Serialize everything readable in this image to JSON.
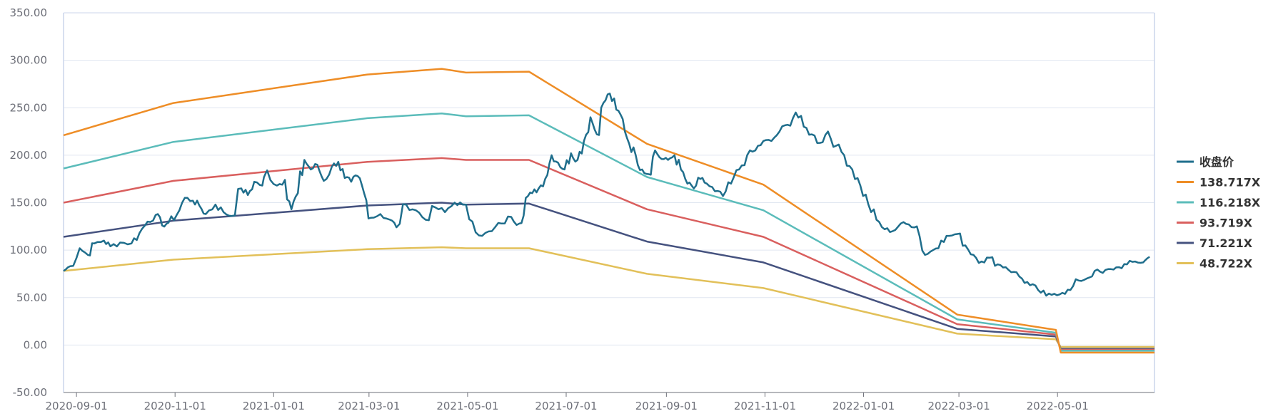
{
  "chart_data": {
    "type": "line",
    "x_type": "date",
    "y_ticks": [
      "350.00",
      "300.00",
      "250.00",
      "200.00",
      "150.00",
      "100.00",
      "50.00",
      "0.00",
      "-50.00"
    ],
    "ylim": [
      -50,
      350
    ],
    "x_ticks": [
      "2020-09-01",
      "2020-11-01",
      "2021-01-01",
      "2021-03-01",
      "2021-05-01",
      "2021-07-01",
      "2021-09-01",
      "2021-11-01",
      "2022-01-01",
      "2022-03-01",
      "2022-05-01"
    ],
    "xlim": [
      "2020-08-24",
      "2022-06-30"
    ],
    "grid": true,
    "legend_position": "right",
    "series": [
      {
        "name": "收盘价",
        "color": "#1f6e8c",
        "anchors": [
          [
            "2020-08-24",
            78
          ],
          [
            "2020-08-28",
            83
          ],
          [
            "2020-09-03",
            102
          ],
          [
            "2020-09-08",
            95
          ],
          [
            "2020-09-12",
            107
          ],
          [
            "2020-09-18",
            110
          ],
          [
            "2020-09-22",
            104
          ],
          [
            "2020-09-28",
            108
          ],
          [
            "2020-10-05",
            107
          ],
          [
            "2020-10-10",
            118
          ],
          [
            "2020-10-15",
            130
          ],
          [
            "2020-10-20",
            137
          ],
          [
            "2020-10-24",
            126
          ],
          [
            "2020-10-28",
            129
          ],
          [
            "2020-11-02",
            137
          ],
          [
            "2020-11-07",
            155
          ],
          [
            "2020-11-12",
            152
          ],
          [
            "2020-11-16",
            147
          ],
          [
            "2020-11-20",
            138
          ],
          [
            "2020-11-26",
            148
          ],
          [
            "2020-12-01",
            140
          ],
          [
            "2020-12-06",
            136
          ],
          [
            "2020-12-12",
            165
          ],
          [
            "2020-12-16",
            158
          ],
          [
            "2020-12-20",
            172
          ],
          [
            "2020-12-25",
            168
          ],
          [
            "2020-12-28",
            184
          ],
          [
            "2021-01-03",
            168
          ],
          [
            "2021-01-08",
            174
          ],
          [
            "2021-01-12",
            143
          ],
          [
            "2021-01-16",
            160
          ],
          [
            "2021-01-20",
            195
          ],
          [
            "2021-01-24",
            185
          ],
          [
            "2021-01-28",
            190
          ],
          [
            "2021-02-01",
            173
          ],
          [
            "2021-02-06",
            188
          ],
          [
            "2021-02-10",
            193
          ],
          [
            "2021-02-14",
            176
          ],
          [
            "2021-02-18",
            172
          ],
          [
            "2021-02-22",
            178
          ],
          [
            "2021-02-26",
            160
          ],
          [
            "2021-03-02",
            134
          ],
          [
            "2021-03-08",
            138
          ],
          [
            "2021-03-14",
            132
          ],
          [
            "2021-03-18",
            124
          ],
          [
            "2021-03-24",
            148
          ],
          [
            "2021-03-30",
            142
          ],
          [
            "2021-04-05",
            132
          ],
          [
            "2021-04-11",
            145
          ],
          [
            "2021-04-17",
            140
          ],
          [
            "2021-04-23",
            150
          ],
          [
            "2021-04-28",
            148
          ],
          [
            "2021-05-04",
            130
          ],
          [
            "2021-05-10",
            115
          ],
          [
            "2021-05-16",
            120
          ],
          [
            "2021-05-22",
            128
          ],
          [
            "2021-05-28",
            135
          ],
          [
            "2021-06-02",
            128
          ],
          [
            "2021-06-06",
            155
          ],
          [
            "2021-06-10",
            160
          ],
          [
            "2021-06-14",
            165
          ],
          [
            "2021-06-18",
            175
          ],
          [
            "2021-06-22",
            200
          ],
          [
            "2021-06-26",
            192
          ],
          [
            "2021-06-30",
            185
          ],
          [
            "2021-07-04",
            202
          ],
          [
            "2021-07-08",
            195
          ],
          [
            "2021-07-12",
            215
          ],
          [
            "2021-07-16",
            240
          ],
          [
            "2021-07-20",
            222
          ],
          [
            "2021-07-24",
            255
          ],
          [
            "2021-07-28",
            265
          ],
          [
            "2021-08-01",
            248
          ],
          [
            "2021-08-05",
            238
          ],
          [
            "2021-08-09",
            212
          ],
          [
            "2021-08-13",
            200
          ],
          [
            "2021-08-17",
            185
          ],
          [
            "2021-08-21",
            180
          ],
          [
            "2021-08-25",
            205
          ],
          [
            "2021-08-29",
            196
          ],
          [
            "2021-09-02",
            195
          ],
          [
            "2021-09-06",
            200
          ],
          [
            "2021-09-10",
            185
          ],
          [
            "2021-09-14",
            170
          ],
          [
            "2021-09-18",
            165
          ],
          [
            "2021-09-22",
            175
          ],
          [
            "2021-09-26",
            170
          ],
          [
            "2021-10-01",
            162
          ],
          [
            "2021-10-06",
            157
          ],
          [
            "2021-10-11",
            170
          ],
          [
            "2021-10-16",
            185
          ],
          [
            "2021-10-21",
            200
          ],
          [
            "2021-10-26",
            205
          ],
          [
            "2021-10-31",
            215
          ],
          [
            "2021-11-05",
            215
          ],
          [
            "2021-11-10",
            225
          ],
          [
            "2021-11-15",
            232
          ],
          [
            "2021-11-20",
            245
          ],
          [
            "2021-11-25",
            230
          ],
          [
            "2021-11-30",
            222
          ],
          [
            "2021-12-05",
            213
          ],
          [
            "2021-12-10",
            225
          ],
          [
            "2021-12-15",
            210
          ],
          [
            "2021-12-20",
            200
          ],
          [
            "2021-12-25",
            185
          ],
          [
            "2021-12-30",
            168
          ],
          [
            "2022-01-04",
            148
          ],
          [
            "2022-01-09",
            132
          ],
          [
            "2022-01-14",
            122
          ],
          [
            "2022-01-19",
            120
          ],
          [
            "2022-01-24",
            128
          ],
          [
            "2022-01-29",
            127
          ],
          [
            "2022-02-03",
            125
          ],
          [
            "2022-02-08",
            95
          ],
          [
            "2022-02-13",
            100
          ],
          [
            "2022-02-18",
            110
          ],
          [
            "2022-02-23",
            115
          ],
          [
            "2022-02-28",
            117
          ],
          [
            "2022-03-05",
            105
          ],
          [
            "2022-03-10",
            95
          ],
          [
            "2022-03-15",
            88
          ],
          [
            "2022-03-20",
            92
          ],
          [
            "2022-03-25",
            85
          ],
          [
            "2022-03-30",
            82
          ],
          [
            "2022-04-04",
            77
          ],
          [
            "2022-04-09",
            70
          ],
          [
            "2022-04-14",
            63
          ],
          [
            "2022-04-19",
            58
          ],
          [
            "2022-04-24",
            52
          ],
          [
            "2022-04-29",
            54
          ],
          [
            "2022-05-04",
            55
          ],
          [
            "2022-05-09",
            58
          ],
          [
            "2022-05-14",
            68
          ],
          [
            "2022-05-19",
            70
          ],
          [
            "2022-05-24",
            78
          ],
          [
            "2022-05-29",
            76
          ],
          [
            "2022-06-03",
            80
          ],
          [
            "2022-06-08",
            82
          ],
          [
            "2022-06-13",
            85
          ],
          [
            "2022-06-18",
            88
          ],
          [
            "2022-06-23",
            87
          ],
          [
            "2022-06-27",
            93
          ]
        ]
      },
      {
        "name": "138.717X",
        "color": "#ee8d26",
        "points": [
          [
            "2020-08-24",
            221
          ],
          [
            "2020-10-31",
            255
          ],
          [
            "2021-02-28",
            285
          ],
          [
            "2021-04-15",
            291
          ],
          [
            "2021-04-30",
            287
          ],
          [
            "2021-06-08",
            288
          ],
          [
            "2021-08-20",
            212
          ],
          [
            "2021-10-31",
            169
          ],
          [
            "2022-02-28",
            32
          ],
          [
            "2022-04-30",
            16
          ],
          [
            "2022-05-03",
            -8
          ],
          [
            "2022-06-30",
            -8
          ]
        ]
      },
      {
        "name": "116.218X",
        "color": "#5bbcba",
        "points": [
          [
            "2020-08-24",
            186
          ],
          [
            "2020-10-31",
            214
          ],
          [
            "2021-02-28",
            239
          ],
          [
            "2021-04-15",
            244
          ],
          [
            "2021-04-30",
            241
          ],
          [
            "2021-06-08",
            242
          ],
          [
            "2021-08-20",
            177
          ],
          [
            "2021-10-31",
            142
          ],
          [
            "2022-02-28",
            27
          ],
          [
            "2022-04-30",
            13
          ],
          [
            "2022-05-03",
            -6
          ],
          [
            "2022-06-30",
            -6
          ]
        ]
      },
      {
        "name": "93.719X",
        "color": "#d95f5e",
        "points": [
          [
            "2020-08-24",
            150
          ],
          [
            "2020-10-31",
            173
          ],
          [
            "2021-02-28",
            193
          ],
          [
            "2021-04-15",
            197
          ],
          [
            "2021-04-30",
            195
          ],
          [
            "2021-06-08",
            195
          ],
          [
            "2021-08-20",
            143
          ],
          [
            "2021-10-31",
            114
          ],
          [
            "2022-02-28",
            22
          ],
          [
            "2022-04-30",
            11
          ],
          [
            "2022-05-03",
            -5
          ],
          [
            "2022-06-30",
            -5
          ]
        ]
      },
      {
        "name": "71.221X",
        "color": "#45527f",
        "points": [
          [
            "2020-08-24",
            114
          ],
          [
            "2020-10-31",
            131
          ],
          [
            "2021-02-28",
            147
          ],
          [
            "2021-04-15",
            150
          ],
          [
            "2021-04-30",
            148
          ],
          [
            "2021-06-08",
            149
          ],
          [
            "2021-08-20",
            109
          ],
          [
            "2021-10-31",
            87
          ],
          [
            "2022-02-28",
            17
          ],
          [
            "2022-04-30",
            9
          ],
          [
            "2022-05-03",
            -4
          ],
          [
            "2022-06-30",
            -4
          ]
        ]
      },
      {
        "name": "48.722X",
        "color": "#e2c059",
        "points": [
          [
            "2020-08-24",
            78
          ],
          [
            "2020-10-31",
            90
          ],
          [
            "2021-02-28",
            101
          ],
          [
            "2021-04-15",
            103
          ],
          [
            "2021-04-30",
            102
          ],
          [
            "2021-06-08",
            102
          ],
          [
            "2021-08-20",
            75
          ],
          [
            "2021-10-31",
            60
          ],
          [
            "2022-02-28",
            12
          ],
          [
            "2022-04-30",
            6
          ],
          [
            "2022-05-03",
            -2
          ],
          [
            "2022-06-30",
            -2
          ]
        ]
      }
    ]
  }
}
